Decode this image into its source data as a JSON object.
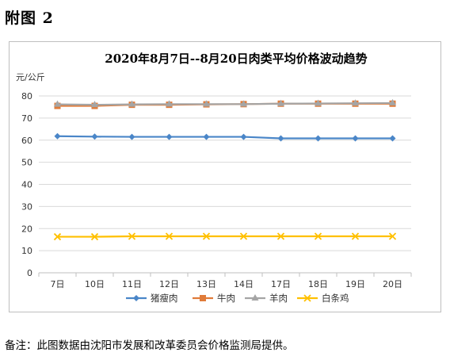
{
  "heading": "附图 2",
  "footnote": "备注：此图数据由沈阳市发展和改革委员会价格监测局提供。",
  "chart_data": {
    "type": "line",
    "title": "2020年8月7日--8月20日肉类平均价格波动趋势",
    "ylabel": "元/公斤",
    "xlabel": "",
    "categories": [
      "7日",
      "10日",
      "11日",
      "12日",
      "13日",
      "14日",
      "17日",
      "18日",
      "19日",
      "20日"
    ],
    "ylim": [
      0,
      80
    ],
    "yticks": [
      0,
      10,
      20,
      30,
      40,
      50,
      60,
      70,
      80
    ],
    "grid": true,
    "legend": "bottom",
    "series": [
      {
        "name": "猪瘦肉",
        "color": "#4a86c8",
        "marker": "diamond",
        "values": [
          61.8,
          61.6,
          61.5,
          61.5,
          61.5,
          61.5,
          60.8,
          60.8,
          60.8,
          60.8
        ]
      },
      {
        "name": "牛肉",
        "color": "#e07b39",
        "marker": "square",
        "values": [
          75.5,
          75.5,
          76.0,
          76.0,
          76.2,
          76.3,
          76.5,
          76.5,
          76.5,
          76.5
        ]
      },
      {
        "name": "羊肉",
        "color": "#a5a5a5",
        "marker": "triangle",
        "values": [
          76.2,
          76.0,
          76.2,
          76.3,
          76.3,
          76.3,
          76.5,
          76.6,
          76.7,
          76.8
        ]
      },
      {
        "name": "白条鸡",
        "color": "#ffc000",
        "marker": "x",
        "values": [
          16.3,
          16.3,
          16.5,
          16.5,
          16.5,
          16.5,
          16.5,
          16.5,
          16.5,
          16.5
        ]
      }
    ]
  }
}
